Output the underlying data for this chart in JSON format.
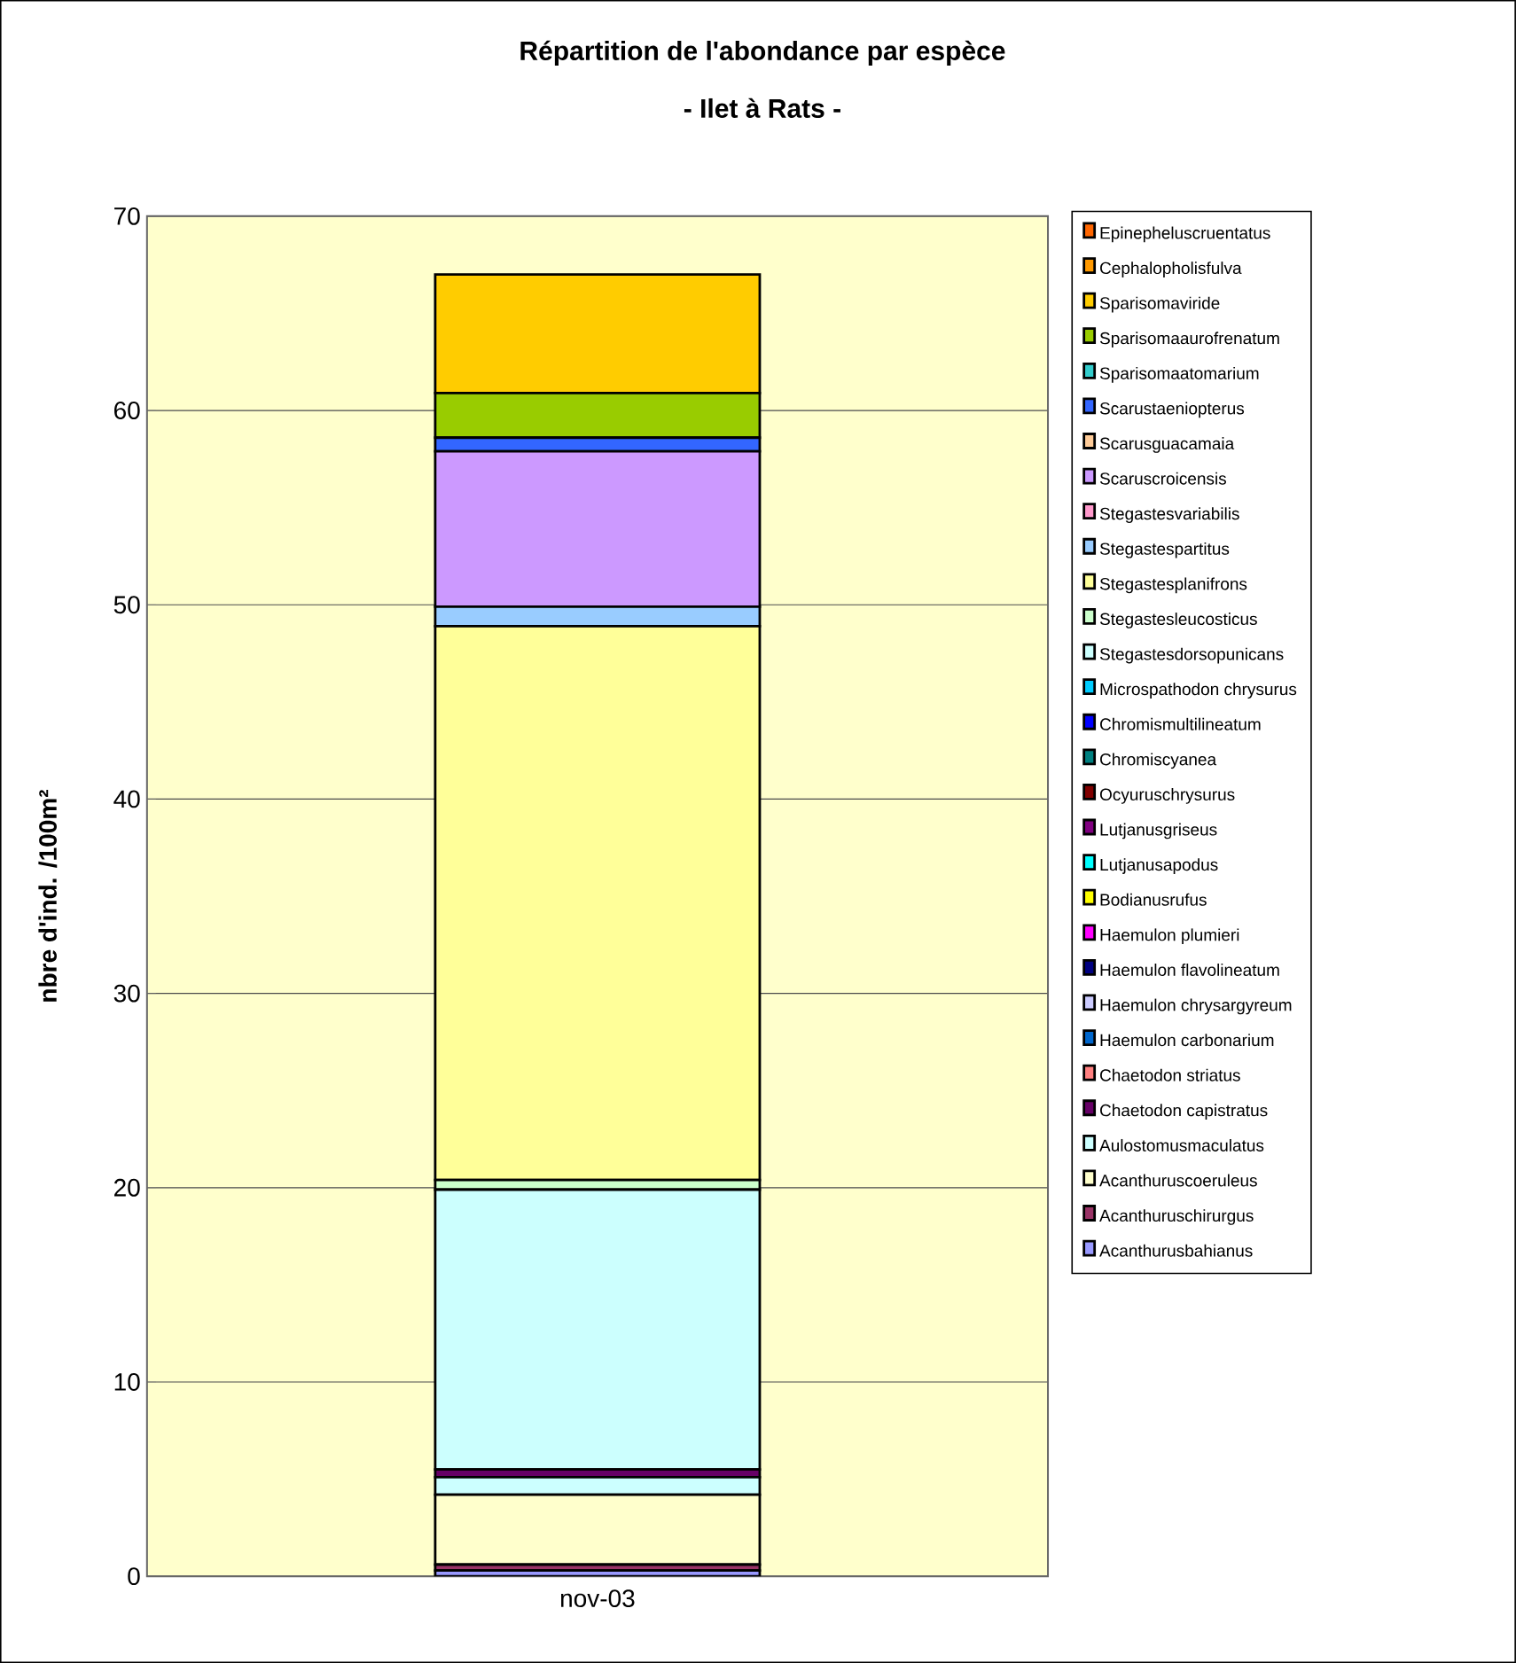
{
  "chart_data": {
    "type": "bar",
    "stacked": true,
    "title": "Répartition de l'abondance par espèce",
    "subtitle": "- Ilet à Rats -",
    "ylabel": "nbre d'ind. /100m²",
    "categories": [
      "nov-03"
    ],
    "ylim": [
      0,
      70
    ],
    "yticks": [
      0,
      10,
      20,
      30,
      40,
      50,
      60,
      70
    ],
    "grid": "y",
    "legend": "right",
    "series": [
      {
        "name": "Acanthurusbahianus",
        "color": "#9999ff",
        "values": [
          0.3
        ]
      },
      {
        "name": "Acanthuruschirurgus",
        "color": "#993366",
        "values": [
          0.3
        ]
      },
      {
        "name": "Acanthuruscoeruleus",
        "color": "#ffffcc",
        "values": [
          3.6
        ]
      },
      {
        "name": "Aulostomusmaculatus",
        "color": "#ccffff",
        "values": [
          0.9
        ]
      },
      {
        "name": "Chaetodon capistratus",
        "color": "#660066",
        "values": [
          0.4
        ]
      },
      {
        "name": "Chaetodon striatus",
        "color": "#ff8080",
        "values": [
          0
        ]
      },
      {
        "name": "Haemulon carbonarium",
        "color": "#0066cc",
        "values": [
          0
        ]
      },
      {
        "name": "Haemulon chrysargyreum",
        "color": "#ccccff",
        "values": [
          0
        ]
      },
      {
        "name": "Haemulon flavolineatum",
        "color": "#000080",
        "values": [
          0
        ]
      },
      {
        "name": "Haemulon plumieri",
        "color": "#ff00ff",
        "values": [
          0
        ]
      },
      {
        "name": "Bodianusrufus",
        "color": "#ffff00",
        "values": [
          0
        ]
      },
      {
        "name": "Lutjanusapodus",
        "color": "#00ffff",
        "values": [
          0
        ]
      },
      {
        "name": "Lutjanusgriseus",
        "color": "#800080",
        "values": [
          0
        ]
      },
      {
        "name": "Ocyuruschrysurus",
        "color": "#800000",
        "values": [
          0
        ]
      },
      {
        "name": "Chromiscyanea",
        "color": "#008080",
        "values": [
          0
        ]
      },
      {
        "name": "Chromismultilineatum",
        "color": "#0000ff",
        "values": [
          0
        ]
      },
      {
        "name": "Microspathodon chrysurus",
        "color": "#00ccff",
        "values": [
          0
        ]
      },
      {
        "name": "Stegastesdorsopunicans",
        "color": "#ccfffe",
        "values": [
          14.4
        ]
      },
      {
        "name": "Stegastesleucosticus",
        "color": "#ccffcc",
        "values": [
          0.5
        ]
      },
      {
        "name": "Stegastesplanifrons",
        "color": "#ffff99",
        "values": [
          28.5
        ]
      },
      {
        "name": "Stegastespartitus",
        "color": "#99ccff",
        "values": [
          1.0
        ]
      },
      {
        "name": "Stegastesvariabilis",
        "color": "#ff99cc",
        "values": [
          0
        ]
      },
      {
        "name": "Scaruscroicensis",
        "color": "#cc99ff",
        "values": [
          8.0
        ]
      },
      {
        "name": "Scarusguacamaia",
        "color": "#ffcc99",
        "values": [
          0
        ]
      },
      {
        "name": "Scarustaeniopterus",
        "color": "#3366ff",
        "values": [
          0.7
        ]
      },
      {
        "name": "Sparisomaatomarium",
        "color": "#33cccc",
        "values": [
          0
        ]
      },
      {
        "name": "Sparisomaaurofrenatum",
        "color": "#99cc00",
        "values": [
          2.3
        ]
      },
      {
        "name": "Sparisomaviride",
        "color": "#ffcc00",
        "values": [
          6.1
        ]
      },
      {
        "name": "Cephalopholisfulva",
        "color": "#ff9900",
        "values": [
          0
        ]
      },
      {
        "name": "Epinepheluscruentatus",
        "color": "#ff6600",
        "values": [
          0
        ]
      }
    ]
  }
}
